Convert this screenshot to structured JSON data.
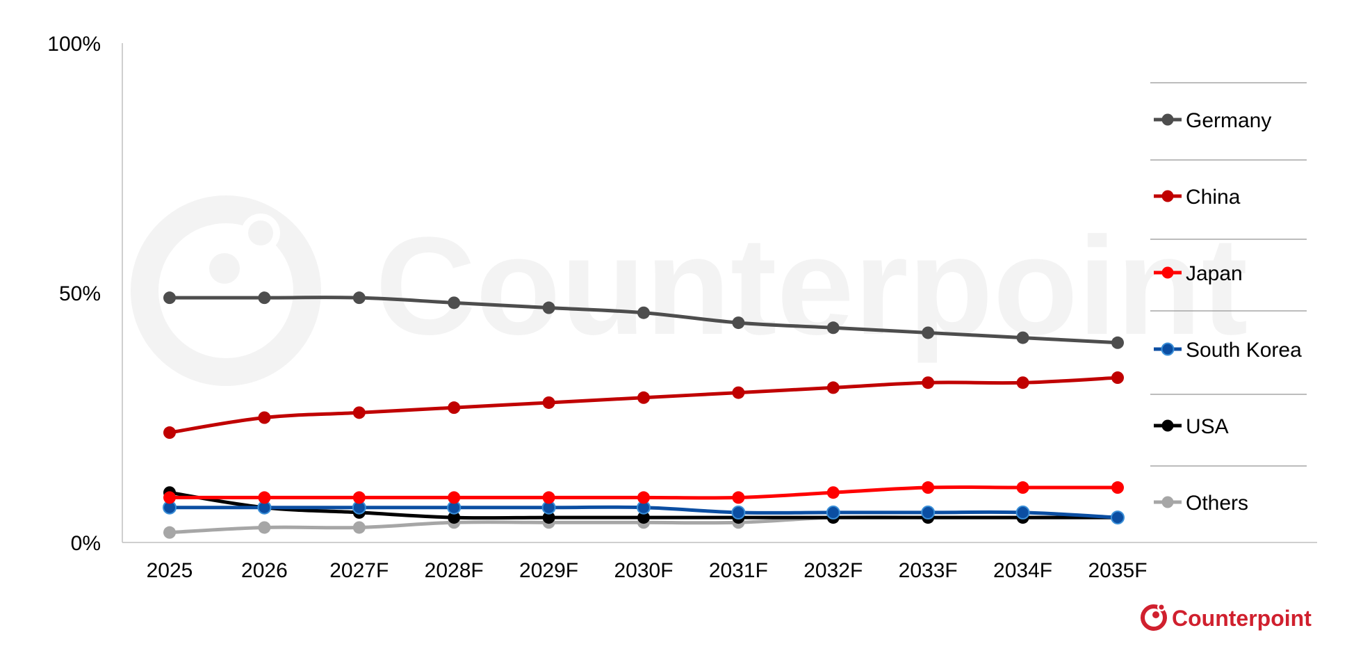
{
  "chart_data": {
    "type": "line",
    "categories": [
      "2025",
      "2026",
      "2027F",
      "2028F",
      "2029F",
      "2030F",
      "2031F",
      "2032F",
      "2033F",
      "2034F",
      "2035F"
    ],
    "ylim": [
      0,
      100
    ],
    "y_ticks": [
      "0%",
      "50%",
      "100%"
    ],
    "y_tick_values": [
      0,
      50,
      100
    ],
    "grid": false,
    "legend_position": "right",
    "series": [
      {
        "name": "Germany",
        "color": "#4d4d4d",
        "values": [
          49,
          49,
          49,
          48,
          47,
          46,
          44,
          43,
          42,
          41,
          40
        ]
      },
      {
        "name": "China",
        "color": "#c00000",
        "values": [
          22,
          25,
          26,
          27,
          28,
          29,
          30,
          31,
          32,
          32,
          33
        ]
      },
      {
        "name": "Japan",
        "color": "#ff0000",
        "values": [
          9,
          9,
          9,
          9,
          9,
          9,
          9,
          10,
          11,
          11,
          11
        ]
      },
      {
        "name": "South Korea",
        "color": "#0b4ea2",
        "values": [
          7,
          7,
          7,
          7,
          7,
          7,
          6,
          6,
          6,
          6,
          5
        ]
      },
      {
        "name": "USA",
        "color": "#000000",
        "values": [
          10,
          7,
          6,
          5,
          5,
          5,
          5,
          5,
          5,
          5,
          5
        ]
      },
      {
        "name": "Others",
        "color": "#a6a6a6",
        "values": [
          2,
          3,
          3,
          4,
          4,
          4,
          4,
          5,
          5,
          5,
          5
        ]
      }
    ]
  },
  "watermark": {
    "text": "Counterpoint"
  },
  "logo": {
    "text": "Counterpoint",
    "color": "#d0202e"
  }
}
